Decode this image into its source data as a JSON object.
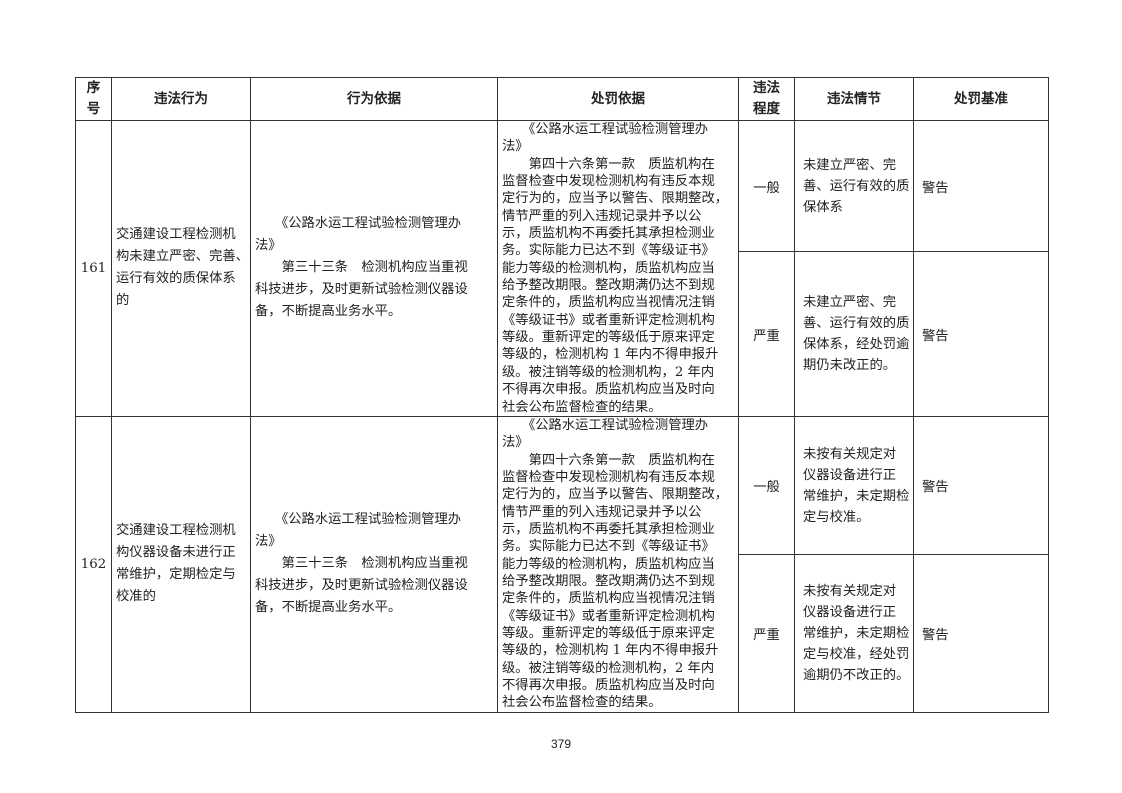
{
  "header": {
    "no": "序\n号",
    "no_lines": [
      "序",
      "号"
    ],
    "violation": "违法行为",
    "behavior_basis": "行为依据",
    "penalty_basis": "处罚依据",
    "degree_lines": [
      "违法",
      "程度"
    ],
    "circumstance": "违法情节",
    "standard": "处罚基准"
  },
  "rows": [
    {
      "no": "161",
      "violation_lines": [
        "交通建设工程检测机",
        "构未建立严密、完善、",
        "运行有效的质保体系",
        "的"
      ],
      "behavior_lines": [
        "　　《公路水运工程试验检测管理办",
        "法》",
        "　　第三十三条　检测机构应当重视",
        "科技进步，及时更新试验检测仪器设",
        "备，不断提高业务水平。"
      ],
      "penalty_lines": [
        "　　《公路水运工程试验检测管理办",
        "法》",
        "　　第四十六条第一款　质监机构在",
        "监督检查中发现检测机构有违反本规",
        "定行为的，应当予以警告、限期整改，",
        "情节严重的列入违规记录并予以公",
        "示，质监机构不再委托其承担检测业",
        "务。实际能力已达不到《等级证书》",
        "能力等级的检测机构，质监机构应当",
        "给予整改期限。整改期满仍达不到规",
        "定条件的，质监机构应当视情况注销",
        "《等级证书》或者重新评定检测机构",
        "等级。重新评定的等级低于原来评定",
        "等级的，检测机构 1 年内不得申报升",
        "级。被注销等级的检测机构，2 年内",
        "不得再次申报。质监机构应当及时向",
        "社会公布监督检查的结果。"
      ],
      "levels": [
        {
          "degree": "一般",
          "circumstance_lines": [
            "未建立严密、完",
            "善、运行有效的质",
            "保体系"
          ],
          "standard": "警告"
        },
        {
          "degree": "严重",
          "circumstance_lines": [
            "未建立严密、完",
            "善、运行有效的质",
            "保体系，经处罚逾",
            "期仍未改正的。"
          ],
          "standard": "警告"
        }
      ]
    },
    {
      "no": "162",
      "violation_lines": [
        "交通建设工程检测机",
        "构仪器设备未进行正",
        "常维护，定期检定与",
        "校准的"
      ],
      "behavior_lines": [
        "　　《公路水运工程试验检测管理办",
        "法》",
        "　　第三十三条　检测机构应当重视",
        "科技进步，及时更新试验检测仪器设",
        "备，不断提高业务水平。"
      ],
      "penalty_lines": [
        "　　《公路水运工程试验检测管理办",
        "法》",
        "　　第四十六条第一款　质监机构在",
        "监督检查中发现检测机构有违反本规",
        "定行为的，应当予以警告、限期整改，",
        "情节严重的列入违规记录并予以公",
        "示，质监机构不再委托其承担检测业",
        "务。实际能力已达不到《等级证书》",
        "能力等级的检测机构，质监机构应当",
        "给予整改期限。整改期满仍达不到规",
        "定条件的，质监机构应当视情况注销",
        "《等级证书》或者重新评定检测机构",
        "等级。重新评定的等级低于原来评定",
        "等级的，检测机构 1 年内不得申报升",
        "级。被注销等级的检测机构，2 年内",
        "不得再次申报。质监机构应当及时向",
        "社会公布监督检查的结果。"
      ],
      "levels": [
        {
          "degree": "一般",
          "circumstance_lines": [
            "未按有关规定对",
            "仪器设备进行正",
            "常维护，未定期检",
            "定与校准。"
          ],
          "standard": "警告"
        },
        {
          "degree": "严重",
          "circumstance_lines": [
            "未按有关规定对",
            "仪器设备进行正",
            "常维护，未定期检",
            "定与校准，经处罚",
            "逾期仍不改正的。"
          ],
          "standard": "警告"
        }
      ]
    }
  ],
  "page_number": "379"
}
